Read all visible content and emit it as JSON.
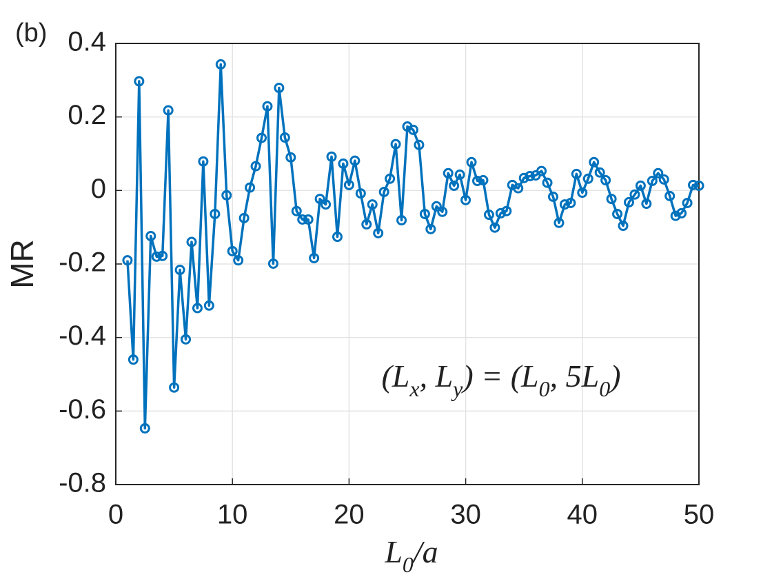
{
  "chart_data": {
    "type": "line",
    "panel_label": "(b)",
    "ylabel": "MR",
    "xlabel": [
      "L",
      "0",
      "/a"
    ],
    "annotation": [
      "(L",
      "x",
      ", L",
      "y",
      ") = (L",
      "0",
      ", 5L",
      "0",
      ")"
    ],
    "x": [
      1,
      1.5,
      2,
      2.5,
      3,
      3.5,
      4,
      4.5,
      5,
      5.5,
      6,
      6.5,
      7,
      7.5,
      8,
      8.5,
      9,
      9.5,
      10,
      10.5,
      11,
      11.5,
      12,
      12.5,
      13,
      13.5,
      14,
      14.5,
      15,
      15.5,
      16,
      16.5,
      17,
      17.5,
      18,
      18.5,
      19,
      19.5,
      20,
      20.5,
      21,
      21.5,
      22,
      22.5,
      23,
      23.5,
      24,
      24.5,
      25,
      25.5,
      26,
      26.5,
      27,
      27.5,
      28,
      28.5,
      29,
      29.5,
      30,
      30.5,
      31,
      31.5,
      32,
      32.5,
      33,
      33.5,
      34,
      34.5,
      35,
      35.5,
      36,
      36.5,
      37,
      37.5,
      38,
      38.5,
      39,
      39.5,
      40,
      40.5,
      41,
      41.5,
      42,
      42.5,
      43,
      43.5,
      44,
      44.5,
      45,
      45.5,
      46,
      46.5,
      47,
      47.5,
      48,
      48.5,
      49,
      49.5,
      50
    ],
    "series": [
      {
        "name": "MR",
        "color": "#0072bd",
        "values": [
          -0.19,
          -0.46,
          0.297,
          -0.647,
          -0.124,
          -0.18,
          -0.178,
          0.218,
          -0.536,
          -0.216,
          -0.405,
          -0.14,
          -0.32,
          0.079,
          -0.313,
          -0.064,
          0.343,
          -0.013,
          -0.165,
          -0.19,
          -0.075,
          0.008,
          0.066,
          0.143,
          0.229,
          -0.199,
          0.279,
          0.144,
          0.09,
          -0.056,
          -0.079,
          -0.079,
          -0.184,
          -0.023,
          -0.038,
          0.092,
          -0.126,
          0.073,
          0.015,
          0.081,
          -0.008,
          -0.092,
          -0.038,
          -0.116,
          -0.004,
          0.032,
          0.126,
          -0.081,
          0.174,
          0.165,
          0.124,
          -0.064,
          -0.105,
          -0.043,
          -0.058,
          0.047,
          0.013,
          0.043,
          -0.026,
          0.077,
          0.026,
          0.028,
          -0.066,
          -0.101,
          -0.062,
          -0.056,
          0.015,
          0.006,
          0.034,
          0.039,
          0.041,
          0.053,
          0.021,
          -0.017,
          -0.088,
          -0.038,
          -0.034,
          0.045,
          -0.006,
          0.032,
          0.077,
          0.049,
          0.028,
          -0.023,
          -0.064,
          -0.096,
          -0.032,
          -0.011,
          0.013,
          -0.036,
          0.026,
          0.047,
          0.03,
          -0.015,
          -0.069,
          -0.062,
          -0.034,
          0.015,
          0.013
        ]
      }
    ],
    "xlim": [
      0,
      50
    ],
    "xticks": [
      0,
      10,
      20,
      30,
      40,
      50
    ],
    "ylim": [
      -0.8,
      0.4
    ],
    "yticks": [
      -0.8,
      -0.6,
      -0.4,
      -0.2,
      0,
      0.2,
      0.4
    ],
    "grid": true
  }
}
